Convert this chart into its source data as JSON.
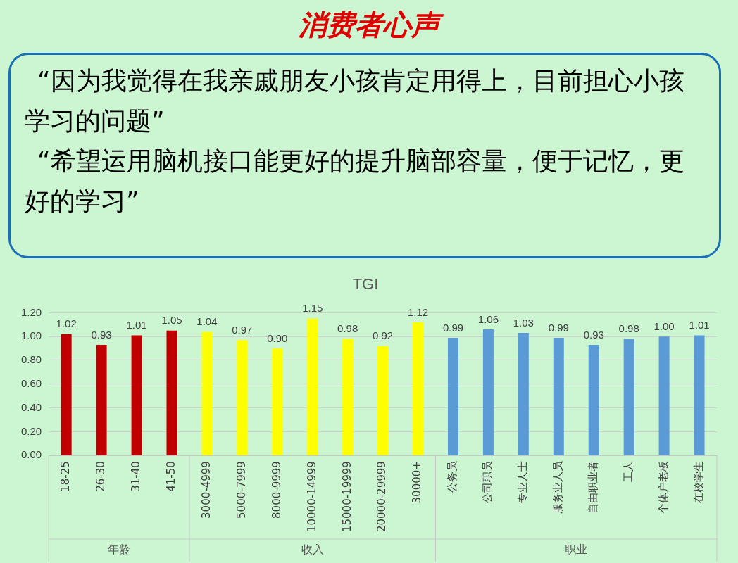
{
  "chart_data": {
    "type": "bar",
    "title": "TGI",
    "categories": [
      "18-25",
      "26-30",
      "31-40",
      "41-50",
      "3000-4999",
      "5000-7999",
      "8000-9999",
      "10000-14999",
      "15000-19999",
      "20000-29999",
      "30000+",
      "公务员",
      "公司职员",
      "专业人士",
      "服务业人员",
      "自由职业者",
      "工人",
      "个体户老板",
      "在校学生"
    ],
    "values": [
      1.02,
      0.93,
      1.01,
      1.05,
      1.04,
      0.97,
      0.9,
      1.15,
      0.98,
      0.92,
      1.12,
      0.99,
      1.06,
      1.03,
      0.99,
      0.93,
      0.98,
      1.0,
      1.01
    ],
    "colors": [
      "#c00000",
      "#c00000",
      "#c00000",
      "#c00000",
      "#ffff00",
      "#ffff00",
      "#ffff00",
      "#ffff00",
      "#ffff00",
      "#ffff00",
      "#ffff00",
      "#5b9bd5",
      "#5b9bd5",
      "#5b9bd5",
      "#5b9bd5",
      "#5b9bd5",
      "#5b9bd5",
      "#5b9bd5",
      "#5b9bd5"
    ],
    "ylim": [
      0,
      1.2
    ],
    "yticks": [
      {
        "value": 0,
        "label": "0.00"
      },
      {
        "value": 0.2,
        "label": "0.20"
      },
      {
        "value": 0.4,
        "label": "0.40"
      },
      {
        "value": 0.6,
        "label": "0.60"
      },
      {
        "value": 0.8,
        "label": "0.80"
      },
      {
        "value": 1,
        "label": "1.00"
      },
      {
        "value": 1.2,
        "label": "1.20"
      }
    ],
    "grid": "y",
    "value_labels": [
      "1.02",
      "0.93",
      "1.01",
      "1.05",
      "1.04",
      "0.97",
      "0.90",
      "1.15",
      "0.98",
      "0.92",
      "1.12",
      "0.99",
      "1.06",
      "1.03",
      "0.99",
      "0.93",
      "0.98",
      "1.00",
      "1.01"
    ],
    "annotations": [
      "消费者心声",
      "“因为我觉得在我亲戚朋友小孩肯定用得上，目前担心小孩学习的问题”",
      "“希望运用脑机接口能更好的提升脑部容量，便于记忆，更好的学习”",
      "年龄",
      "收入",
      "职业"
    ]
  }
}
